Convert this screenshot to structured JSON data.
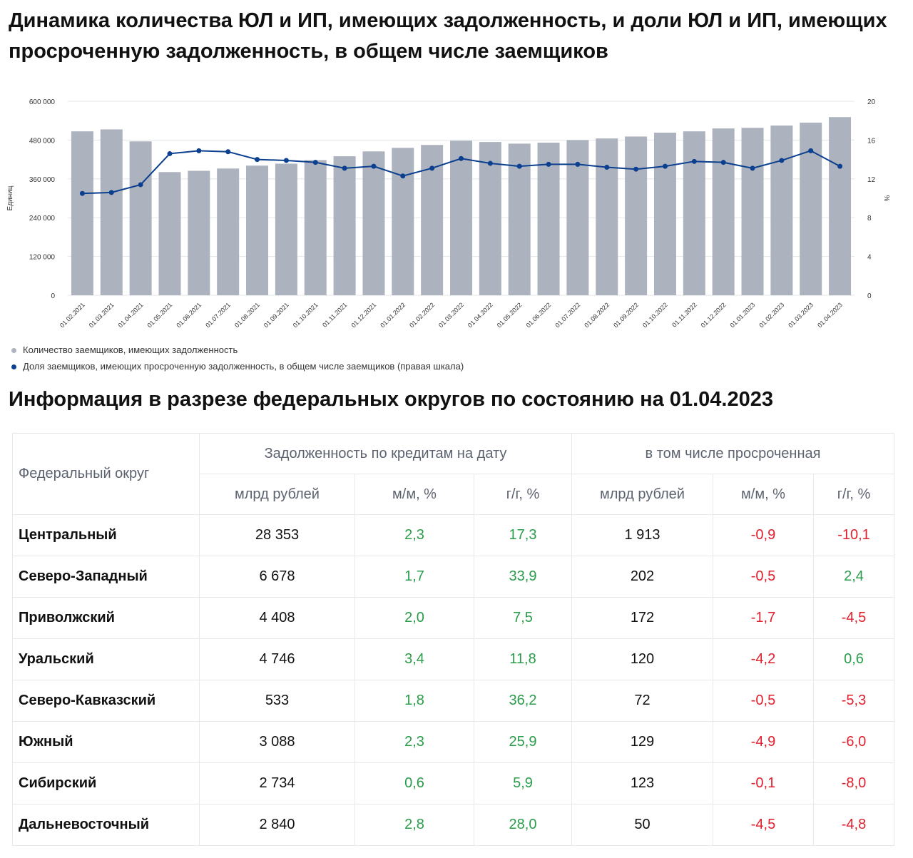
{
  "title": "Динамика количества ЮЛ и ИП, имеющих задолженность, и доли ЮЛ и ИП, имеющих просроченную задолженность, в общем числе заемщиков",
  "chart_data": {
    "type": "bar+line",
    "categories": [
      "01.02.2021",
      "01.03.2021",
      "01.04.2021",
      "01.05.2021",
      "01.06.2021",
      "01.07.2021",
      "01.08.2021",
      "01.09.2021",
      "01.10.2021",
      "01.11.2021",
      "01.12.2021",
      "01.01.2022",
      "01.02.2022",
      "01.03.2022",
      "01.04.2022",
      "01.05.2022",
      "01.06.2022",
      "01.07.2022",
      "01.08.2022",
      "01.09.2022",
      "01.10.2022",
      "01.11.2022",
      "01.12.2022",
      "01.01.2023",
      "01.02.2023",
      "01.03.2023",
      "01.04.2023"
    ],
    "series": [
      {
        "name": "Количество заемщиков, имеющих задолженность",
        "type": "bar",
        "axis": "left",
        "color": "#adb3be",
        "values": [
          507000,
          513000,
          476000,
          381000,
          385000,
          392000,
          401000,
          407000,
          418000,
          430000,
          445000,
          456000,
          465000,
          478000,
          474000,
          469000,
          472000,
          480000,
          485000,
          491000,
          503000,
          507000,
          516000,
          518000,
          525000,
          534000,
          551000
        ]
      },
      {
        "name": "Доля заемщиков, имеющих просроченную задолженность, в общем числе заемщиков (правая шкала)",
        "type": "line",
        "axis": "right",
        "color": "#0b3f8f",
        "values": [
          10.5,
          10.6,
          11.4,
          14.6,
          14.9,
          14.8,
          14.0,
          13.9,
          13.7,
          13.1,
          13.3,
          12.3,
          13.1,
          14.1,
          13.6,
          13.3,
          13.5,
          13.5,
          13.2,
          13.0,
          13.3,
          13.8,
          13.7,
          13.1,
          13.9,
          14.9,
          13.3
        ]
      }
    ],
    "ylabel": "Единиц",
    "y2label": "%",
    "ylim": [
      0,
      600000
    ],
    "y2lim": [
      0,
      20
    ],
    "yticks": [
      "0",
      "120 000",
      "240 000",
      "360 000",
      "480 000",
      "600 000"
    ],
    "y2ticks": [
      "0",
      "4",
      "8",
      "12",
      "16",
      "20"
    ],
    "grid": true,
    "legend": "bottom-left"
  },
  "table": {
    "title": "Информация в разрезе федеральных округов по состоянию на 01.04.2023",
    "col0": "Федеральный округ",
    "group1": "Задолженность по кредитам на дату",
    "group2": "в том числе просроченная",
    "subheaders": [
      "млрд рублей",
      "м/м, %",
      "г/г, %",
      "млрд рублей",
      "м/м, %",
      "г/г, %"
    ],
    "rows": [
      [
        "Центральный",
        "28 353",
        "2,3",
        "17,3",
        "1 913",
        "-0,9",
        "-10,1"
      ],
      [
        "Северо-Западный",
        "6 678",
        "1,7",
        "33,9",
        "202",
        "-0,5",
        "2,4"
      ],
      [
        "Приволжский",
        "4 408",
        "2,0",
        "7,5",
        "172",
        "-1,7",
        "-4,5"
      ],
      [
        "Уральский",
        "4 746",
        "3,4",
        "11,8",
        "120",
        "-4,2",
        "0,6"
      ],
      [
        "Северо-Кавказский",
        "533",
        "1,8",
        "36,2",
        "72",
        "-0,5",
        "-5,3"
      ],
      [
        "Южный",
        "3 088",
        "2,3",
        "25,9",
        "129",
        "-4,9",
        "-6,0"
      ],
      [
        "Сибирский",
        "2 734",
        "0,6",
        "5,9",
        "123",
        "-0,1",
        "-8,0"
      ],
      [
        "Дальневосточный",
        "2 840",
        "2,8",
        "28,0",
        "50",
        "-4,5",
        "-4,8"
      ]
    ]
  }
}
